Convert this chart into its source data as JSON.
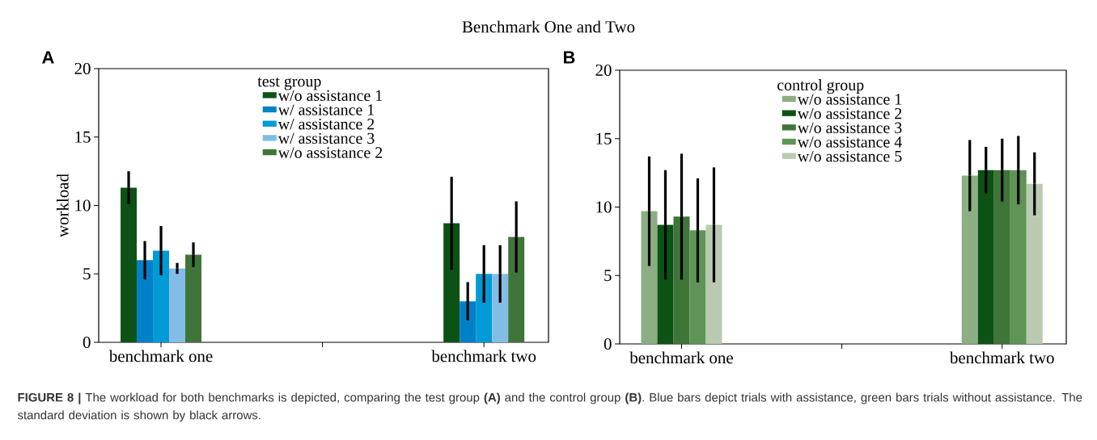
{
  "chart_data": [
    {
      "type": "bar",
      "title": "Benchmark One and Two",
      "ylabel": "workload",
      "legend_title": "test group",
      "legend": "top",
      "categories": [
        "benchmark one",
        null,
        "benchmark two"
      ],
      "ylim": [
        0,
        20
      ],
      "yticks": [
        0,
        5,
        10,
        15,
        20
      ],
      "annotations": [
        "A",
        "**FIGURE 8 |** The workload for both benchmarks is depicted, comparing the test group **(A)** and the control group **(B)**. Blue bars depict trials with assistance, green bars trials without assistance. The standard deviation is shown by black arrows."
      ],
      "series": [
        {
          "name": "w/o assistance 1",
          "color": "#0d5215",
          "values": [
            11.3,
            null,
            8.7
          ],
          "errors": [
            1.2,
            null,
            3.4
          ]
        },
        {
          "name": "w/   assistance 1",
          "color": "#0080c8",
          "values": [
            6.0,
            null,
            3.0
          ],
          "errors": [
            1.4,
            null,
            1.4
          ]
        },
        {
          "name": "w/   assistance 2",
          "color": "#009bd6",
          "values": [
            6.7,
            null,
            5.0
          ],
          "errors": [
            1.8,
            null,
            2.1
          ]
        },
        {
          "name": "w/   assistance 3",
          "color": "#83bde6",
          "values": [
            5.4,
            null,
            5.0
          ],
          "errors": [
            0.4,
            null,
            2.1
          ]
        },
        {
          "name": "w/o assistance 2",
          "color": "#3f7539",
          "values": [
            6.4,
            null,
            7.7
          ],
          "errors": [
            0.9,
            null,
            2.6
          ]
        }
      ]
    },
    {
      "type": "bar",
      "legend_title": "control group",
      "legend": "top",
      "categories": [
        "benchmark one",
        null,
        "benchmark two"
      ],
      "ylim": [
        0,
        20
      ],
      "yticks": [
        0,
        5,
        10,
        15,
        20
      ],
      "annotations": [
        "B"
      ],
      "series": [
        {
          "name": "w/o assistance 1",
          "color": "#8bae82",
          "values": [
            9.7,
            null,
            12.3
          ],
          "errors": [
            4.0,
            null,
            2.6
          ]
        },
        {
          "name": "w/o assistance 2",
          "color": "#0d5215",
          "values": [
            8.7,
            null,
            12.7
          ],
          "errors": [
            4.0,
            null,
            1.7
          ]
        },
        {
          "name": "w/o assistance 3",
          "color": "#3f7539",
          "values": [
            9.3,
            null,
            12.7
          ],
          "errors": [
            4.6,
            null,
            2.3
          ]
        },
        {
          "name": "w/o assistance 4",
          "color": "#5e9556",
          "values": [
            8.3,
            null,
            12.7
          ],
          "errors": [
            3.8,
            null,
            2.5
          ]
        },
        {
          "name": "w/o assistance 5",
          "color": "#bacab0",
          "values": [
            8.7,
            null,
            11.7
          ],
          "errors": [
            4.2,
            null,
            2.3
          ]
        }
      ]
    }
  ]
}
